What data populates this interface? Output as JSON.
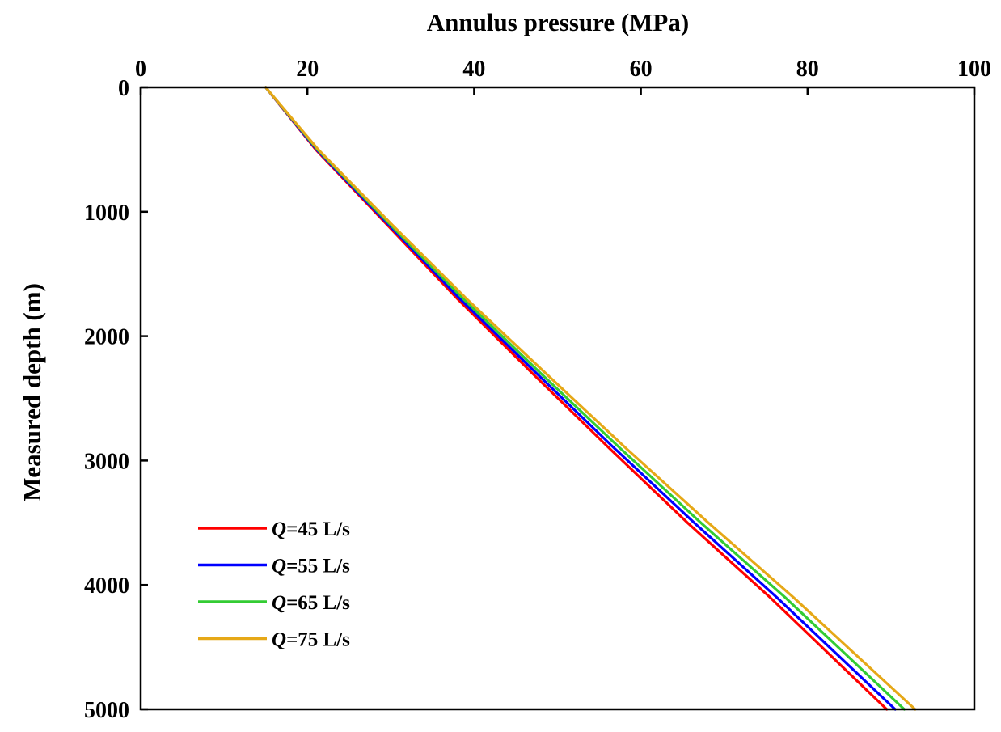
{
  "chart_data": {
    "type": "line",
    "title": "",
    "xlabel": "Annulus pressure (MPa)",
    "ylabel": "Measured depth (m)",
    "x_axis_position": "top",
    "y_axis_inverted": true,
    "xlim": [
      0,
      100
    ],
    "ylim": [
      0,
      5000
    ],
    "xticks": [
      "0",
      "20",
      "40",
      "60",
      "80",
      "100"
    ],
    "yticks": [
      "0",
      "1000",
      "2000",
      "3000",
      "4000",
      "5000"
    ],
    "grid": false,
    "legend_position": "bottom-left",
    "series": [
      {
        "name": "Q=45 L/s",
        "legend_symbol": "Q",
        "legend_suffix": "=45 L/s",
        "color": "#ff0000",
        "points": [
          [
            15.0,
            0
          ],
          [
            21.0,
            500
          ],
          [
            29.5,
            1100
          ],
          [
            38.0,
            1700
          ],
          [
            47.0,
            2300
          ],
          [
            56.2,
            2900
          ],
          [
            65.6,
            3500
          ],
          [
            75.5,
            4100
          ],
          [
            89.5,
            5000
          ]
        ]
      },
      {
        "name": "Q=55 L/s",
        "legend_symbol": "Q",
        "legend_suffix": "=55 L/s",
        "color": "#0000ff",
        "points": [
          [
            15.0,
            0
          ],
          [
            21.1,
            500
          ],
          [
            29.7,
            1100
          ],
          [
            38.3,
            1700
          ],
          [
            47.5,
            2300
          ],
          [
            56.8,
            2900
          ],
          [
            66.4,
            3500
          ],
          [
            76.3,
            4100
          ],
          [
            90.5,
            5000
          ]
        ]
      },
      {
        "name": "Q=65 L/s",
        "legend_symbol": "Q",
        "legend_suffix": "=65 L/s",
        "color": "#33cc33",
        "points": [
          [
            15.0,
            0
          ],
          [
            21.2,
            500
          ],
          [
            29.9,
            1100
          ],
          [
            38.7,
            1700
          ],
          [
            48.0,
            2300
          ],
          [
            57.5,
            2900
          ],
          [
            67.2,
            3500
          ],
          [
            77.3,
            4100
          ],
          [
            91.6,
            5000
          ]
        ]
      },
      {
        "name": "Q=75 L/s",
        "legend_symbol": "Q",
        "legend_suffix": "=75 L/s",
        "color": "#e6a817",
        "points": [
          [
            15.0,
            0
          ],
          [
            21.3,
            500
          ],
          [
            30.1,
            1100
          ],
          [
            39.1,
            1700
          ],
          [
            48.6,
            2300
          ],
          [
            58.2,
            2900
          ],
          [
            68.1,
            3500
          ],
          [
            78.3,
            4100
          ],
          [
            92.9,
            5000
          ]
        ]
      }
    ]
  }
}
